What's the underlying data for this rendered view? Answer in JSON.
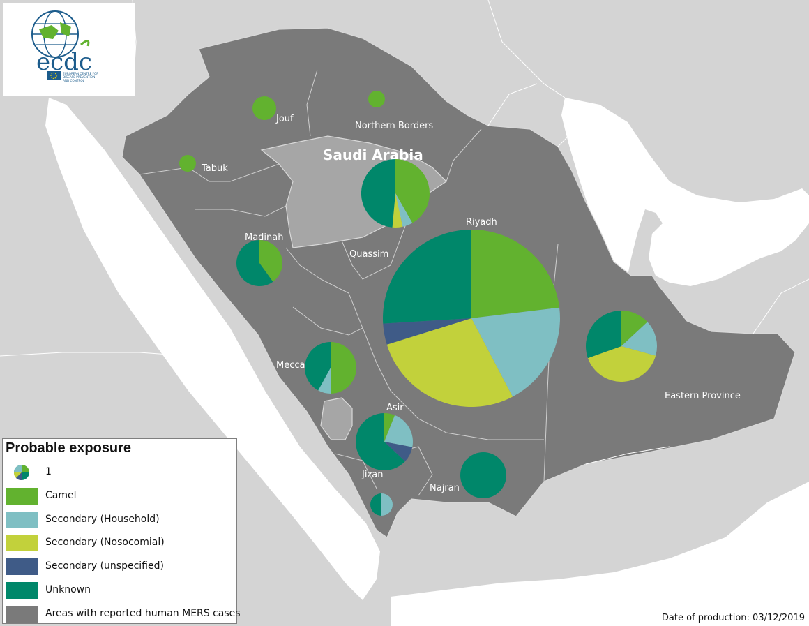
{
  "colors": {
    "camel": "#62b22f",
    "household": "#7fbfc3",
    "nosocomial": "#c2d13b",
    "unspecified": "#3f5b87",
    "unknown": "#00876a",
    "affected": "#7a7a7a",
    "country_unaffected": "#a6a6a6",
    "neighbours": "#d4d4d4",
    "sea": "#ffffff"
  },
  "logo": {
    "name": "ecdc",
    "caption": "EUROPEAN CENTRE FOR DISEASE PREVENTION AND CONTROL"
  },
  "country_label": "Saudi Arabia",
  "regions": [
    {
      "id": "jouf",
      "label": "Jouf"
    },
    {
      "id": "northern-borders",
      "label": "Northern Borders"
    },
    {
      "id": "tabuk",
      "label": "Tabuk"
    },
    {
      "id": "madinah",
      "label": "Madinah"
    },
    {
      "id": "quassim",
      "label": "Quassim"
    },
    {
      "id": "riyadh",
      "label": "Riyadh"
    },
    {
      "id": "mecca",
      "label": "Mecca"
    },
    {
      "id": "asir",
      "label": "Asir"
    },
    {
      "id": "jizan",
      "label": "Jizan"
    },
    {
      "id": "najran",
      "label": "Najran"
    },
    {
      "id": "eastern-province",
      "label": "Eastern Province"
    }
  ],
  "pies": [
    {
      "id": "jouf",
      "slices": [
        1,
        0,
        0,
        0,
        0
      ]
    },
    {
      "id": "northern-borders",
      "slices": [
        1,
        0,
        0,
        0,
        0
      ]
    },
    {
      "id": "tabuk",
      "slices": [
        1,
        0,
        0,
        0,
        0
      ]
    },
    {
      "id": "hail",
      "slices": [
        0.43,
        0.05,
        0.05,
        0,
        0.5
      ]
    },
    {
      "id": "madinah",
      "slices": [
        0.4,
        0,
        0,
        0,
        0.6
      ]
    },
    {
      "id": "riyadh",
      "slices": [
        0.24,
        0.2,
        0.29,
        0.04,
        0.27
      ]
    },
    {
      "id": "eastern-province",
      "slices": [
        0.12,
        0.15,
        0.37,
        0,
        0.28
      ]
    },
    {
      "id": "mecca",
      "slices": [
        0.5,
        0.08,
        0,
        0,
        0.42
      ]
    },
    {
      "id": "asir",
      "slices": [
        0.06,
        0.22,
        0,
        0.09,
        0.63
      ]
    },
    {
      "id": "najran",
      "slices": [
        0,
        0,
        0,
        0,
        1
      ]
    },
    {
      "id": "jizan",
      "slices": [
        0,
        0.5,
        0,
        0,
        0.5
      ]
    }
  ],
  "legend": {
    "title": "Probable exposure",
    "size_example": "1",
    "items": [
      {
        "label": "Camel",
        "color": "#62b22f"
      },
      {
        "label": "Secondary (Household)",
        "color": "#7fbfc3"
      },
      {
        "label": "Secondary (Nosocomial)",
        "color": "#c2d13b"
      },
      {
        "label": "Secondary (unspecified)",
        "color": "#3f5b87"
      },
      {
        "label": "Unknown",
        "color": "#00876a"
      },
      {
        "label": "Areas with reported human MERS cases",
        "color": "#7a7a7a"
      }
    ]
  },
  "date_text": "Date of production: 03/12/2019"
}
